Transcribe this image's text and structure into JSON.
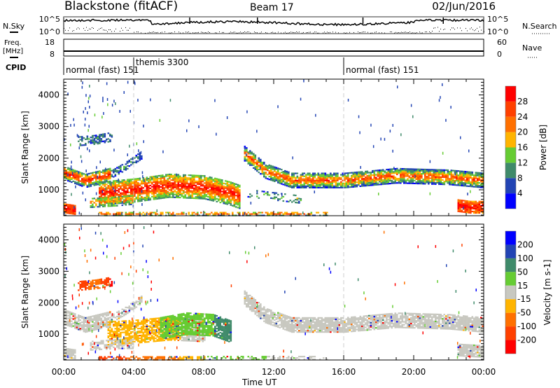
{
  "header": {
    "title": "Blackstone (fitACF)",
    "beam": "Beam 17",
    "date": "02/Jun/2016"
  },
  "nsky_panel": {
    "left_label": "N.Sky",
    "right_label": "N.Search",
    "left_ticks": [
      "10^5",
      "10^0"
    ],
    "right_ticks": [
      "10^5",
      "10^0"
    ]
  },
  "freq_panel": {
    "left_label_1": "Freq.",
    "left_label_2": "[MHz]",
    "right_label": "Nave",
    "left_ticks": [
      "18",
      "8"
    ],
    "right_ticks": [
      "60",
      "0"
    ],
    "freq_mhz": 10.5,
    "nave": 20
  },
  "cpid": {
    "label": "CPID",
    "segments": [
      {
        "start_h": 0,
        "name": "normal (fast) 151",
        "raised": false
      },
      {
        "start_h": 4,
        "name": "themis 3300",
        "raised": true
      },
      {
        "start_h": 16,
        "name": "normal (fast) 151",
        "raised": false
      }
    ]
  },
  "chart_data": [
    {
      "type": "heatmap",
      "name": "power",
      "ylabel": "Slant Range [km]",
      "ylim": [
        180,
        4500
      ],
      "xlim": [
        0,
        24
      ],
      "yticks": [
        "1000",
        "2000",
        "3000",
        "4000"
      ],
      "ytick_values": [
        1000,
        2000,
        3000,
        4000
      ],
      "colorbar": {
        "label": "Power [dB]",
        "ticks": [
          "4",
          "8",
          "12",
          "16",
          "20",
          "24",
          "28"
        ],
        "colors": [
          "#0000ff",
          "#2244b4",
          "#3f8a6a",
          "#66cc33",
          "#ffb400",
          "#ff7000",
          "#ff4000",
          "#ff0000"
        ]
      },
      "regions": [
        {
          "t": [
            0,
            1.2,
            2.7
          ],
          "r": [
            1550,
            1300,
            1500
          ],
          "hw": 220,
          "core": 7,
          "edge": 1,
          "dens": 0.85
        },
        {
          "t": [
            0.8,
            1.8,
            2.8
          ],
          "r": [
            2550,
            2600,
            2700
          ],
          "hw": 150,
          "core": 2,
          "edge": 1,
          "dens": 0.5
        },
        {
          "t": [
            2.7,
            3.5,
            4.4
          ],
          "r": [
            1500,
            1750,
            2100
          ],
          "hw": 120,
          "core": 2,
          "edge": 1,
          "dens": 0.6
        },
        {
          "t": [
            2,
            4,
            6,
            8,
            9.5,
            10
          ],
          "r": [
            900,
            1000,
            1150,
            1100,
            900,
            800
          ],
          "hw": 380,
          "core": 7,
          "edge": 2,
          "dens": 0.85
        },
        {
          "t": [
            1.5,
            3,
            4
          ],
          "r": [
            600,
            650,
            700
          ],
          "hw": 150,
          "core": 5,
          "edge": 2,
          "dens": 0.6
        },
        {
          "t": [
            10.3,
            11.5,
            13,
            16,
            19,
            22,
            24
          ],
          "r": [
            2150,
            1600,
            1300,
            1300,
            1450,
            1400,
            1300
          ],
          "hw": 230,
          "core": 6,
          "edge": 1,
          "dens": 0.85
        },
        {
          "t": [
            10.5,
            12,
            13.5
          ],
          "r": [
            900,
            800,
            700
          ],
          "hw": 120,
          "core": 3,
          "edge": 1,
          "dens": 0.3
        },
        {
          "t": [
            22.5,
            23.2,
            24
          ],
          "r": [
            500,
            450,
            450
          ],
          "hw": 180,
          "core": 7,
          "edge": 5,
          "dens": 0.9
        },
        {
          "t": [
            0,
            0.6
          ],
          "r": [
            430,
            380
          ],
          "hw": 150,
          "core": 7,
          "edge": 5,
          "dens": 0.9
        },
        {
          "t": [
            2,
            8,
            15
          ],
          "r": [
            250,
            250,
            250
          ],
          "hw": 60,
          "core": 6,
          "edge": 2,
          "dens": 0.55
        }
      ]
    },
    {
      "type": "heatmap",
      "name": "velocity",
      "ylabel": "Slant Range [km]",
      "xlabel": "Time UT",
      "ylim": [
        180,
        4500
      ],
      "xlim": [
        0,
        24
      ],
      "yticks": [
        "1000",
        "2000",
        "3000",
        "4000"
      ],
      "ytick_values": [
        1000,
        2000,
        3000,
        4000
      ],
      "xticks": [
        "00:00",
        "04:00",
        "08:00",
        "12:00",
        "16:00",
        "20:00",
        "00:00"
      ],
      "colorbar": {
        "label": "Velocity [m s-1]",
        "ticks": [
          "200",
          "100",
          "50",
          "15",
          "-15",
          "-50",
          "-100",
          "-200"
        ],
        "colors": [
          "#0000ff",
          "#2244b4",
          "#3f8a6a",
          "#66cc33",
          "#c8c8c0",
          "#ffb400",
          "#ff7000",
          "#ff4000",
          "#ff0000"
        ]
      },
      "regions": [
        {
          "t": [
            0,
            1.2,
            2.7
          ],
          "r": [
            1550,
            1300,
            1500
          ],
          "hw": 230,
          "v": [
            4
          ],
          "dens": 0.85
        },
        {
          "t": [
            0.8,
            1.8,
            2.8
          ],
          "r": [
            2550,
            2600,
            2700
          ],
          "hw": 150,
          "v": [
            7,
            6,
            8
          ],
          "dens": 0.6
        },
        {
          "t": [
            2.7,
            3.5,
            4.4
          ],
          "r": [
            1500,
            1750,
            2100
          ],
          "hw": 120,
          "v": [
            4
          ],
          "dens": 0.6
        },
        {
          "t": [
            2.5,
            4,
            6,
            8
          ],
          "r": [
            1050,
            1100,
            1200,
            1150
          ],
          "hw": 380,
          "v": [
            5,
            5,
            4
          ],
          "dens": 0.75
        },
        {
          "t": [
            5.5,
            7,
            8.5,
            9.5
          ],
          "r": [
            1200,
            1350,
            1300,
            1100
          ],
          "hw": 350,
          "v": [
            3,
            3,
            2
          ],
          "dens": 0.85
        },
        {
          "t": [
            1.5,
            3,
            4
          ],
          "r": [
            650,
            700,
            700
          ],
          "hw": 150,
          "v": [
            4
          ],
          "dens": 0.6
        },
        {
          "t": [
            10.3,
            11.5,
            13,
            16,
            19,
            22,
            24
          ],
          "r": [
            2150,
            1600,
            1300,
            1300,
            1450,
            1400,
            1300
          ],
          "hw": 230,
          "v": [
            4
          ],
          "dens": 0.85
        },
        {
          "t": [
            22.5,
            24
          ],
          "r": [
            500,
            450
          ],
          "hw": 180,
          "v": [
            4
          ],
          "dens": 0.9
        },
        {
          "t": [
            0,
            0.6
          ],
          "r": [
            430,
            380
          ],
          "hw": 150,
          "v": [
            4
          ],
          "dens": 0.8
        },
        {
          "t": [
            2,
            5,
            8
          ],
          "r": [
            250,
            250,
            250
          ],
          "hw": 60,
          "v": [
            7,
            6,
            5
          ],
          "dens": 0.6
        },
        {
          "t": [
            8,
            15
          ],
          "r": [
            250,
            250
          ],
          "hw": 50,
          "v": [
            3,
            4
          ],
          "dens": 0.4
        }
      ]
    }
  ],
  "dashed_lines_h": [
    4,
    16
  ]
}
